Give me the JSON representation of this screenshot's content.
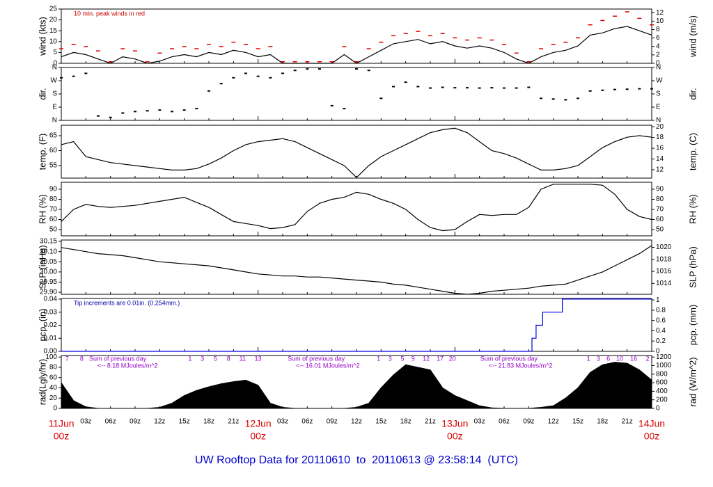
{
  "chart_data": [
    {
      "type": "line",
      "ylabel": "wind (kts)",
      "y2label": "wind (m/s)",
      "annotation": "10 min. peak winds in red",
      "annotation_color": "#cc0000",
      "ylim": [
        0,
        25
      ],
      "yticks": [
        0,
        5,
        10,
        15,
        20,
        25
      ],
      "y2lim": [
        0,
        12.86
      ],
      "y2ticks": [
        0,
        2,
        4,
        6,
        8,
        10,
        12
      ],
      "x": [
        0,
        1.5,
        3,
        4.5,
        6,
        7.5,
        9,
        10.5,
        12,
        13.5,
        15,
        16.5,
        18,
        19.5,
        21,
        22.5,
        24,
        25.5,
        27,
        28.5,
        30,
        31.5,
        33,
        34.5,
        36,
        37.5,
        39,
        40.5,
        42,
        43.5,
        45,
        46.5,
        48,
        49.5,
        51,
        52.5,
        54,
        55.5,
        57,
        58.5,
        60,
        61.5,
        63,
        64.5,
        66,
        67.5,
        69,
        70.5,
        72
      ],
      "series": [
        {
          "color": "#000000",
          "style": "line",
          "values": [
            3,
            5,
            4,
            2,
            0,
            3,
            2,
            0,
            1,
            3,
            4,
            3,
            5,
            4,
            6,
            5,
            3,
            4,
            0,
            0,
            0,
            0,
            0,
            4,
            0,
            3,
            6,
            9,
            10,
            11,
            9,
            10,
            8,
            7,
            8,
            7,
            5,
            2,
            0,
            3,
            5,
            6,
            8,
            13,
            14,
            16,
            17,
            15,
            13
          ]
        },
        {
          "color": "#dd0000",
          "style": "dash",
          "values": [
            6,
            8,
            7,
            5,
            0,
            6,
            5,
            0,
            4,
            6,
            7,
            6,
            8,
            7,
            9,
            8,
            6,
            7,
            0,
            0,
            0,
            0,
            0,
            7,
            0,
            6,
            9,
            12,
            13,
            14,
            12,
            13,
            11,
            10,
            11,
            10,
            8,
            4,
            0,
            6,
            8,
            9,
            11,
            17,
            19,
            21,
            23,
            20,
            17
          ]
        }
      ]
    },
    {
      "type": "scatter",
      "ylabel": "dir.",
      "y2label": "dir.",
      "ylim": [
        0,
        360
      ],
      "yticks": [
        {
          "value": 0,
          "label": "N"
        },
        {
          "value": 90,
          "label": "E"
        },
        {
          "value": 180,
          "label": "S"
        },
        {
          "value": 270,
          "label": "W"
        },
        {
          "value": 360,
          "label": "N"
        }
      ],
      "y2lim": [
        0,
        360
      ],
      "y2ticks": [
        {
          "value": 0,
          "label": "N"
        },
        {
          "value": 90,
          "label": "E"
        },
        {
          "value": 180,
          "label": "S"
        },
        {
          "value": 270,
          "label": "W"
        },
        {
          "value": 360,
          "label": "N"
        }
      ],
      "x": [
        0,
        1.5,
        3,
        4.5,
        6,
        7.5,
        9,
        10.5,
        12,
        13.5,
        15,
        16.5,
        18,
        19.5,
        21,
        22.5,
        24,
        25.5,
        27,
        28.5,
        30,
        31.5,
        33,
        34.5,
        36,
        37.5,
        39,
        40.5,
        42,
        43.5,
        45,
        46.5,
        48,
        49.5,
        51,
        52.5,
        54,
        55.5,
        57,
        58.5,
        60,
        61.5,
        63,
        64.5,
        66,
        67.5,
        69,
        70.5,
        72
      ],
      "color": "#000000",
      "values": [
        290,
        300,
        320,
        30,
        20,
        50,
        60,
        65,
        70,
        60,
        70,
        80,
        200,
        250,
        290,
        320,
        300,
        290,
        320,
        340,
        350,
        350,
        100,
        80,
        350,
        340,
        150,
        230,
        260,
        230,
        220,
        225,
        222,
        222,
        220,
        222,
        220,
        220,
        225,
        150,
        145,
        140,
        150,
        200,
        205,
        210,
        212,
        215,
        215
      ]
    },
    {
      "type": "line",
      "ylabel": "temp. (F)",
      "y2label": "temp. (C)",
      "ylim": [
        50.8,
        68.5
      ],
      "yticks": [
        55,
        60,
        65
      ],
      "y2lim": [
        10.444,
        20.278
      ],
      "y2ticks": [
        12,
        14,
        16,
        18,
        20
      ],
      "x": [
        0,
        1.5,
        3,
        4.5,
        6,
        7.5,
        9,
        10.5,
        12,
        13.5,
        15,
        16.5,
        18,
        19.5,
        21,
        22.5,
        24,
        25.5,
        27,
        28.5,
        30,
        31.5,
        33,
        34.5,
        36,
        37.5,
        39,
        40.5,
        42,
        43.5,
        45,
        46.5,
        48,
        49.5,
        51,
        52.5,
        54,
        55.5,
        57,
        58.5,
        60,
        61.5,
        63,
        64.5,
        66,
        67.5,
        69,
        70.5,
        72
      ],
      "series": [
        {
          "color": "#000000",
          "style": "line",
          "values": [
            62,
            63,
            58,
            57,
            56,
            55.5,
            55,
            54.5,
            54,
            53.5,
            53.5,
            54,
            55.5,
            57.5,
            60,
            62,
            63,
            63.5,
            64,
            63,
            61,
            59,
            57,
            55,
            51,
            55,
            58,
            60,
            62,
            64,
            66,
            67,
            67.5,
            66,
            63,
            60,
            59,
            57.5,
            55.5,
            53.5,
            53.5,
            54,
            55,
            58,
            61,
            63,
            64.5,
            65,
            64.5
          ]
        }
      ]
    },
    {
      "type": "line",
      "ylabel": "RH (%)",
      "y2label": "RH (%)",
      "ylim": [
        43.8,
        96.9
      ],
      "yticks": [
        50,
        60,
        70,
        80,
        90
      ],
      "y2lim": [
        43.8,
        96.9
      ],
      "y2ticks": [
        50,
        60,
        70,
        80,
        90
      ],
      "x": [
        0,
        1.5,
        3,
        4.5,
        6,
        7.5,
        9,
        10.5,
        12,
        13.5,
        15,
        16.5,
        18,
        19.5,
        21,
        22.5,
        24,
        25.5,
        27,
        28.5,
        30,
        31.5,
        33,
        34.5,
        36,
        37.5,
        39,
        40.5,
        42,
        43.5,
        45,
        46.5,
        48,
        49.5,
        51,
        52.5,
        54,
        55.5,
        57,
        58.5,
        60,
        61.5,
        63,
        64.5,
        66,
        67.5,
        69,
        70.5,
        72
      ],
      "series": [
        {
          "color": "#000000",
          "style": "line",
          "values": [
            58,
            70,
            75,
            73,
            72,
            73,
            74,
            76,
            78,
            80,
            82,
            77,
            72,
            65,
            58,
            56,
            54,
            51,
            52,
            55,
            68,
            76,
            80,
            82,
            87,
            85,
            80,
            76,
            70,
            60,
            52,
            49,
            50,
            58,
            65,
            64,
            65,
            65,
            72,
            90,
            95,
            95,
            95,
            95,
            94,
            85,
            70,
            63,
            60
          ]
        }
      ]
    },
    {
      "type": "line",
      "ylabel": "SLP (inHg)",
      "y2label": "SLP (hPa)",
      "ylim": [
        29.89,
        30.157
      ],
      "yticks": [
        {
          "value": 29.9,
          "label": "29.90"
        },
        29.95,
        {
          "value": 30,
          "label": "30.00"
        },
        30.05,
        {
          "value": 30.1,
          "label": "30.10"
        },
        30.15
      ],
      "y2lim": [
        1012.18,
        1021.22
      ],
      "y2ticks": [
        1014,
        1016,
        1018,
        1020
      ],
      "x": [
        0,
        1.5,
        3,
        4.5,
        6,
        7.5,
        9,
        10.5,
        12,
        13.5,
        15,
        16.5,
        18,
        19.5,
        21,
        22.5,
        24,
        25.5,
        27,
        28.5,
        30,
        31.5,
        33,
        34.5,
        36,
        37.5,
        39,
        40.5,
        42,
        43.5,
        45,
        46.5,
        48,
        49.5,
        51,
        52.5,
        54,
        55.5,
        57,
        58.5,
        60,
        61.5,
        63,
        64.5,
        66,
        67.5,
        69,
        70.5,
        72
      ],
      "series": [
        {
          "color": "#000000",
          "style": "line",
          "values": [
            30.12,
            30.11,
            30.1,
            30.09,
            30.085,
            30.08,
            30.07,
            30.06,
            30.05,
            30.045,
            30.04,
            30.035,
            30.03,
            30.02,
            30.01,
            30.0,
            29.99,
            29.985,
            29.98,
            29.98,
            29.975,
            29.975,
            29.97,
            29.965,
            29.96,
            29.955,
            29.95,
            29.94,
            29.935,
            29.925,
            29.915,
            29.905,
            29.895,
            29.89,
            29.895,
            29.905,
            29.91,
            29.915,
            29.92,
            29.93,
            29.935,
            29.94,
            29.96,
            29.98,
            30.0,
            30.03,
            30.06,
            30.09,
            30.13
          ]
        }
      ]
    },
    {
      "type": "step",
      "ylabel": "pcp. (in)",
      "y2label": "pcp. (mm)",
      "annotation": "Tip increments are 0.01in. (0.254mm.)",
      "annotation_color": "#0000aa",
      "ylim": [
        0,
        0.0405
      ],
      "yticks": [
        {
          "value": 0,
          "label": "0.00"
        },
        0.01,
        0.02,
        0.03,
        0.04
      ],
      "y2lim": [
        0,
        1.0287
      ],
      "y2ticks": [
        0,
        0.2,
        0.4,
        0.6,
        0.8,
        1
      ],
      "x": [
        0,
        57.4,
        57.9,
        58.7,
        61.1,
        72
      ],
      "series": [
        {
          "color": "#0000dd",
          "style": "line",
          "values": [
            0,
            0.01,
            0.02,
            0.03,
            0.04,
            0.04
          ]
        }
      ]
    },
    {
      "type": "area",
      "ylabel": "rad(Lgly/hr)",
      "y2label": "rad (W/m^2)",
      "ylim": [
        0,
        103
      ],
      "yticks": [
        0,
        20,
        40,
        60,
        80,
        100
      ],
      "y2lim": [
        0,
        1236
      ],
      "y2ticks": [
        0,
        200,
        400,
        600,
        800,
        1000,
        1200
      ],
      "x": [
        0,
        1.5,
        3,
        4.5,
        6,
        7.5,
        9,
        10.5,
        12,
        13.5,
        15,
        16.5,
        18,
        19.5,
        21,
        22.5,
        24,
        25.5,
        27,
        28.5,
        30,
        31.5,
        33,
        34.5,
        36,
        37.5,
        39,
        40.5,
        42,
        43.5,
        45,
        46.5,
        48,
        49.5,
        51,
        52.5,
        54,
        55.5,
        57,
        58.5,
        60,
        61.5,
        63,
        64.5,
        66,
        67.5,
        69,
        70.5,
        72
      ],
      "color": "#000000",
      "values": [
        50,
        15,
        3,
        0,
        0,
        0,
        0,
        0,
        2,
        10,
        25,
        35,
        42,
        48,
        52,
        55,
        45,
        10,
        2,
        0,
        0,
        0,
        0,
        0,
        2,
        10,
        40,
        65,
        85,
        80,
        75,
        40,
        25,
        15,
        5,
        1,
        0,
        0,
        0,
        2,
        5,
        20,
        40,
        70,
        85,
        90,
        88,
        75,
        55
      ],
      "label_color": "#9900cc",
      "hour_labels": [
        {
          "value": 0.7,
          "label": "7"
        },
        {
          "value": 2.5,
          "label": "8"
        },
        {
          "value": 15.7,
          "label": "1"
        },
        {
          "value": 17.2,
          "label": "3"
        },
        {
          "value": 18.8,
          "label": "5"
        },
        {
          "value": 20.4,
          "label": "8"
        },
        {
          "value": 22.1,
          "label": "11"
        },
        {
          "value": 24.0,
          "label": "13"
        },
        {
          "value": 38.7,
          "label": "1"
        },
        {
          "value": 40.1,
          "label": "3"
        },
        {
          "value": 41.6,
          "label": "5"
        },
        {
          "value": 42.9,
          "label": "9"
        },
        {
          "value": 44.5,
          "label": "12"
        },
        {
          "value": 46.2,
          "label": "17"
        },
        {
          "value": 47.7,
          "label": "20"
        },
        {
          "value": 64.3,
          "label": "1"
        },
        {
          "value": 65.5,
          "label": "3"
        },
        {
          "value": 66.7,
          "label": "6"
        },
        {
          "value": 68.1,
          "label": "10"
        },
        {
          "value": 69.8,
          "label": "16"
        },
        {
          "value": 71.5,
          "label": "2"
        }
      ],
      "sums": [
        {
          "value": 3.4,
          "label": "Sum of previous day",
          "total": "<-- 8.18 MJoules/m^2"
        },
        {
          "value": 27.6,
          "label": "Sum of previous day",
          "total": "<-- 16.01 MJoules/m^2"
        },
        {
          "value": 51.1,
          "label": "Sum of previous day",
          "total": "<-- 21.83 MJoules/m^2"
        }
      ],
      "xlim": [
        0,
        72
      ],
      "xticks": [
        {
          "value": 3,
          "label": "03z"
        },
        {
          "value": 6,
          "label": "06z"
        },
        {
          "value": 9,
          "label": "09z"
        },
        {
          "value": 12,
          "label": "12z"
        },
        {
          "value": 15,
          "label": "15z"
        },
        {
          "value": 18,
          "label": "18z"
        },
        {
          "value": 21,
          "label": "21z"
        },
        {
          "value": 27,
          "label": "03z"
        },
        {
          "value": 30,
          "label": "06z"
        },
        {
          "value": 33,
          "label": "09z"
        },
        {
          "value": 36,
          "label": "12z"
        },
        {
          "value": 39,
          "label": "15z"
        },
        {
          "value": 42,
          "label": "18z"
        },
        {
          "value": 45,
          "label": "21z"
        },
        {
          "value": 51,
          "label": "03z"
        },
        {
          "value": 54,
          "label": "06z"
        },
        {
          "value": 57,
          "label": "09z"
        },
        {
          "value": 60,
          "label": "12z"
        },
        {
          "value": 63,
          "label": "15z"
        },
        {
          "value": 66,
          "label": "18z"
        },
        {
          "value": 69,
          "label": "21z"
        }
      ],
      "date_ticks": [
        {
          "value": 0,
          "label": "11Jun",
          "time": "00z"
        },
        {
          "value": 24,
          "label": "12Jun",
          "time": "00z"
        },
        {
          "value": 48,
          "label": "13Jun",
          "time": "00z"
        },
        {
          "value": 72,
          "label": "14Jun",
          "time": "00z"
        }
      ],
      "title": "UW Rooftop Data for 20110610  to  20110613 @ 23:58:14  (UTC)",
      "title_color": "#0000cc"
    }
  ]
}
